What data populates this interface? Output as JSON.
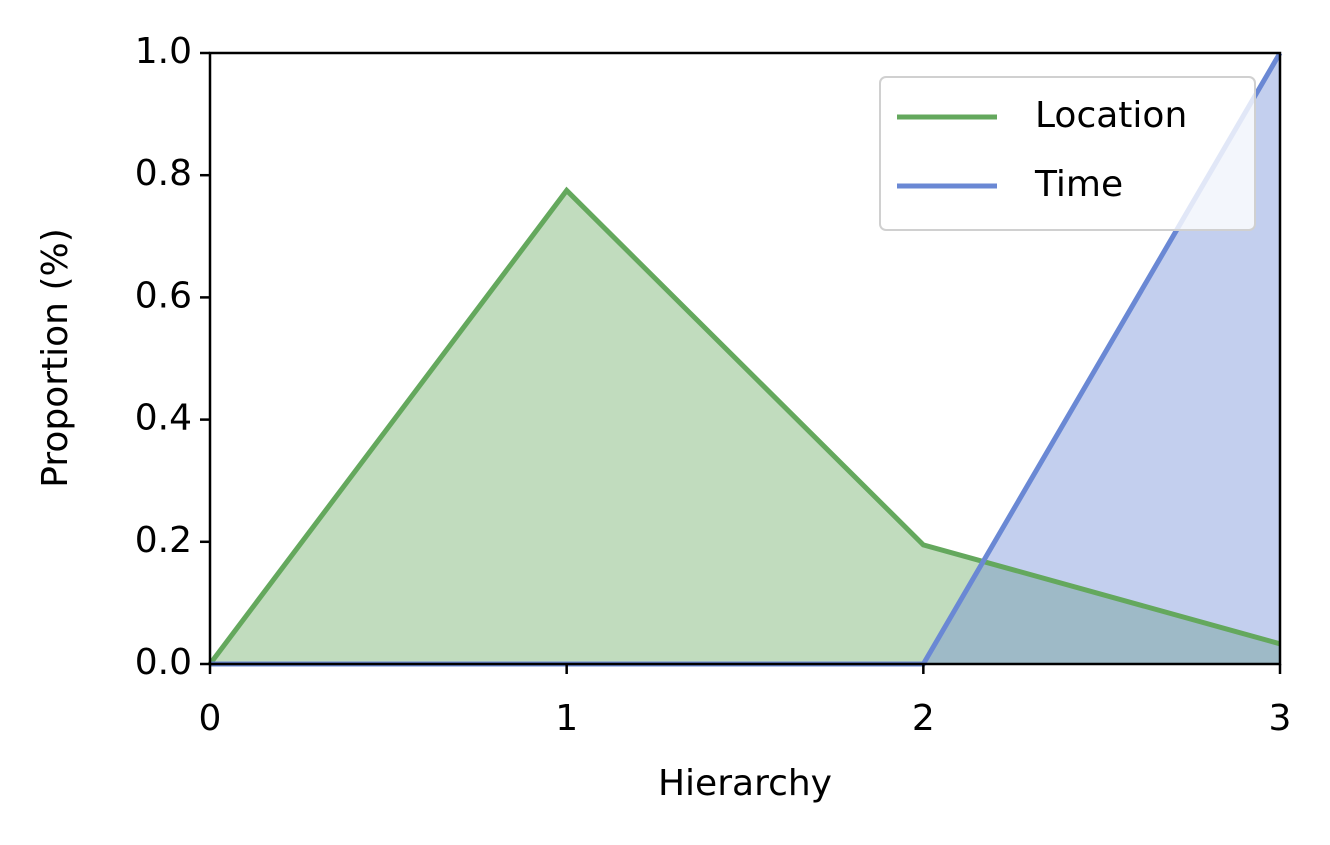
{
  "chart_data": {
    "type": "area",
    "x_label": "Hierarchy",
    "y_label": "Proportion (%)",
    "x": [
      0,
      1,
      2,
      3
    ],
    "series": [
      {
        "name": "Location",
        "color": "#64a85d",
        "values": [
          0,
          0.775,
          0.195,
          0.033
        ]
      },
      {
        "name": "Time",
        "color": "#6a88d4",
        "values": [
          0,
          0,
          0,
          1.0
        ]
      }
    ],
    "xlim": [
      0,
      3
    ],
    "xticks": [
      0,
      1,
      2,
      3
    ],
    "ylim": [
      0,
      1
    ],
    "yticks": [
      {
        "value": 0,
        "label": "0.0"
      },
      0.2,
      0.4,
      0.6,
      0.8,
      {
        "value": 1,
        "label": "1.0"
      }
    ],
    "grid": false,
    "legend": "upper right"
  }
}
